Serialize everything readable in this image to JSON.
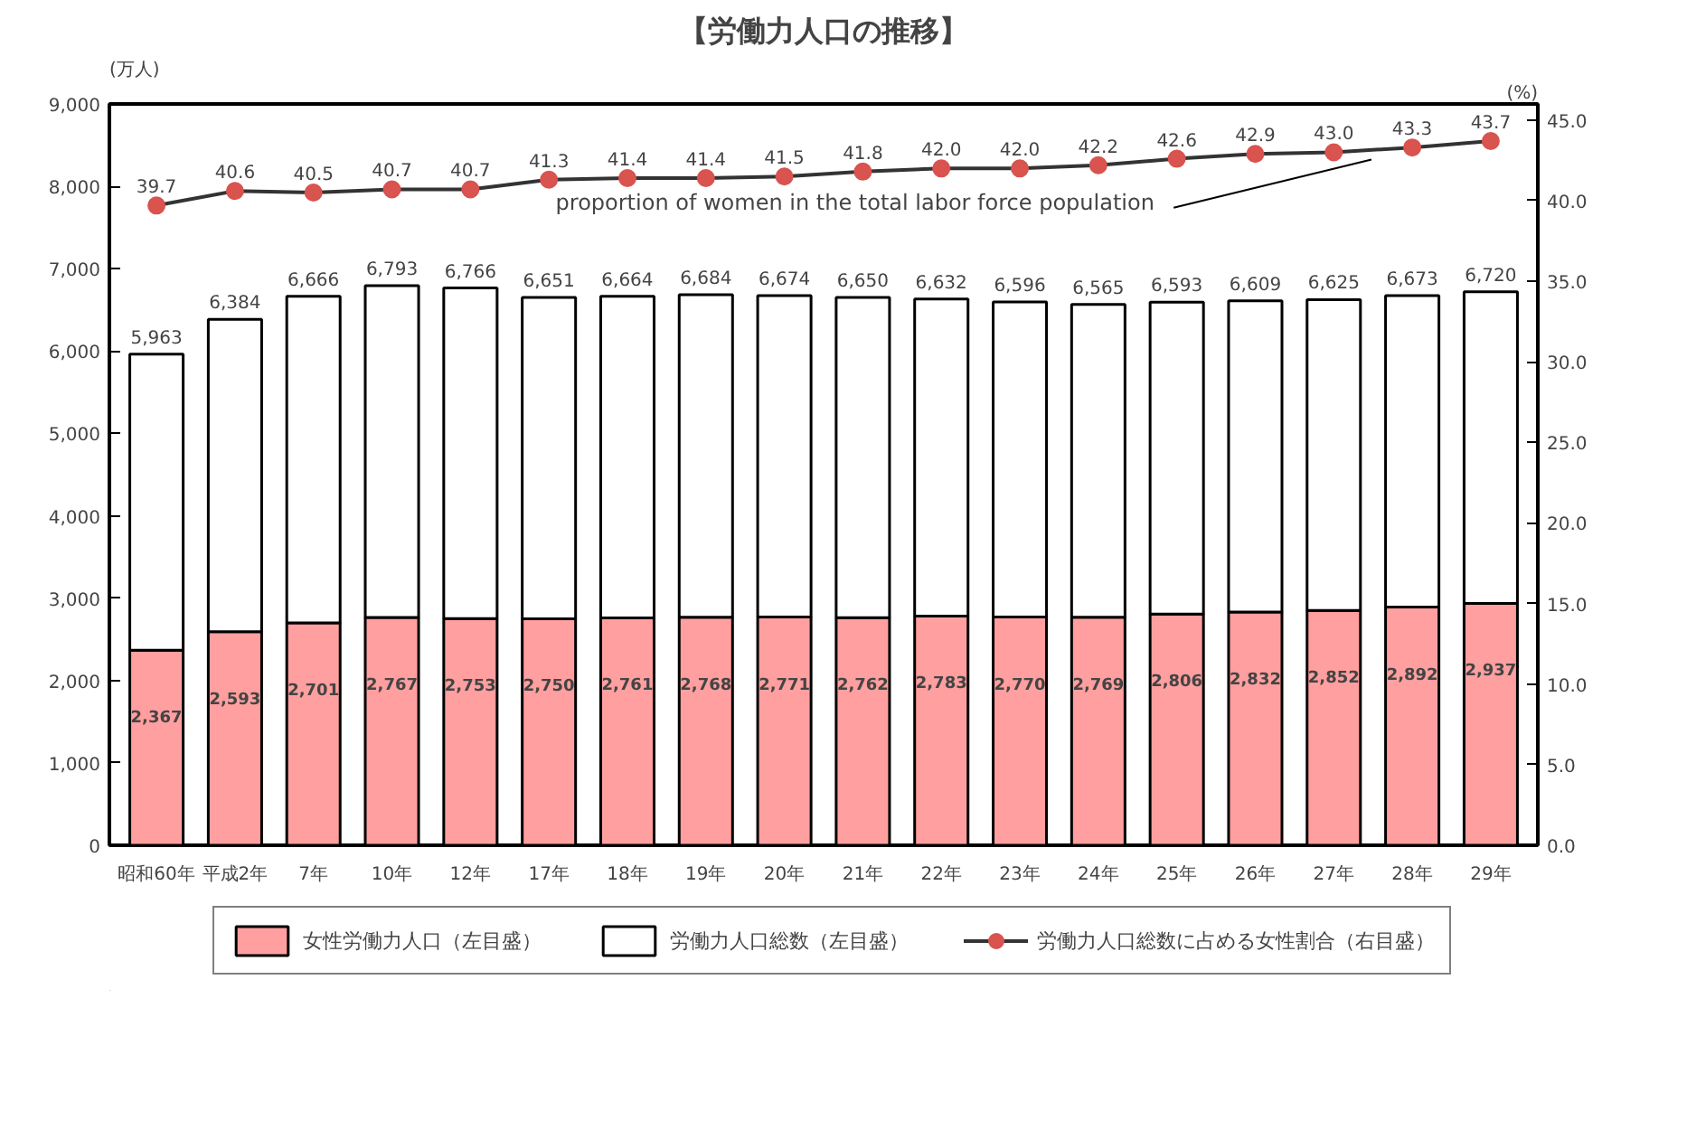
{
  "chart_data": {
    "type": "bar",
    "title": "【労働力人口の推移】",
    "ylabel": "(万人)",
    "y2label": "(%)",
    "categories": [
      "昭和60年",
      "平成2年",
      "7年",
      "10年",
      "12年",
      "17年",
      "18年",
      "19年",
      "20年",
      "21年",
      "22年",
      "23年",
      "24年",
      "25年",
      "26年",
      "27年",
      "28年",
      "29年"
    ],
    "stacked": true,
    "series": [
      {
        "name": "女性労働力人口（左目盛）",
        "color": "#ff9f9f",
        "values": [
          2367,
          2593,
          2701,
          2767,
          2753,
          2750,
          2761,
          2768,
          2771,
          2762,
          2783,
          2770,
          2769,
          2806,
          2832,
          2852,
          2892,
          2937
        ],
        "value_labels": [
          "2,367",
          "2,593",
          "2,701",
          "2,767",
          "2,753",
          "2,750",
          "2,761",
          "2,768",
          "2,771",
          "2,762",
          "2,783",
          "2,770",
          "2,769",
          "2,806",
          "2,832",
          "2,852",
          "2,892",
          "2,937"
        ]
      },
      {
        "name": "労働力人口総数（左目盛）",
        "color": "#ffffff",
        "values": [
          3596,
          3791,
          3965,
          4026,
          4013,
          3901,
          3903,
          3916,
          3903,
          3888,
          3849,
          3826,
          3796,
          3787,
          3777,
          3773,
          3781,
          3783
        ]
      },
      {
        "name": "労働力人口総数に占める女性割合（右目盛）",
        "type": "line",
        "axis": "y2",
        "marker": "circle",
        "color": "#d9534f",
        "values": [
          39.7,
          40.6,
          40.5,
          40.7,
          40.7,
          41.3,
          41.4,
          41.4,
          41.5,
          41.8,
          42.0,
          42.0,
          42.2,
          42.6,
          42.9,
          43.0,
          43.3,
          43.7
        ],
        "value_labels": [
          "39.7",
          "40.6",
          "40.5",
          "40.7",
          "40.7",
          "41.3",
          "41.4",
          "41.4",
          "41.5",
          "41.8",
          "42.0",
          "42.0",
          "42.2",
          "42.6",
          "42.9",
          "43.0",
          "43.3",
          "43.7"
        ]
      }
    ],
    "totals": [
      "5,963",
      "6,384",
      "6,666",
      "6,793",
      "6,766",
      "6,651",
      "6,664",
      "6,684",
      "6,674",
      "6,650",
      "6,632",
      "6,596",
      "6,565",
      "6,593",
      "6,609",
      "6,625",
      "6,673",
      "6,720"
    ],
    "ylim": [
      0,
      9000
    ],
    "yticks": [
      0,
      {
        "value": 1000,
        "label": "1,000"
      },
      {
        "value": 2000,
        "label": "2,000"
      },
      {
        "value": 3000,
        "label": "3,000"
      },
      {
        "value": 4000,
        "label": "4,000"
      },
      {
        "value": 5000,
        "label": "5,000"
      },
      {
        "value": 6000,
        "label": "6,000"
      },
      {
        "value": 7000,
        "label": "7,000"
      },
      {
        "value": 8000,
        "label": "8,000"
      },
      {
        "value": 9000,
        "label": "9,000"
      }
    ],
    "y2lim": [
      0,
      46
    ],
    "y2ticks": [
      {
        "value": 0,
        "label": "0.0"
      },
      {
        "value": 5,
        "label": "5.0"
      },
      {
        "value": 10,
        "label": "10.0"
      },
      {
        "value": 15,
        "label": "15.0"
      },
      {
        "value": 20,
        "label": "20.0"
      },
      {
        "value": 25,
        "label": "25.0"
      },
      {
        "value": 30,
        "label": "30.0"
      },
      {
        "value": 35,
        "label": "35.0"
      },
      {
        "value": 40,
        "label": "40.0"
      },
      {
        "value": 45,
        "label": "45.0"
      }
    ],
    "annotations": [
      "proportion of women in the total labor force population"
    ],
    "grid": false,
    "legend": "bottom"
  }
}
